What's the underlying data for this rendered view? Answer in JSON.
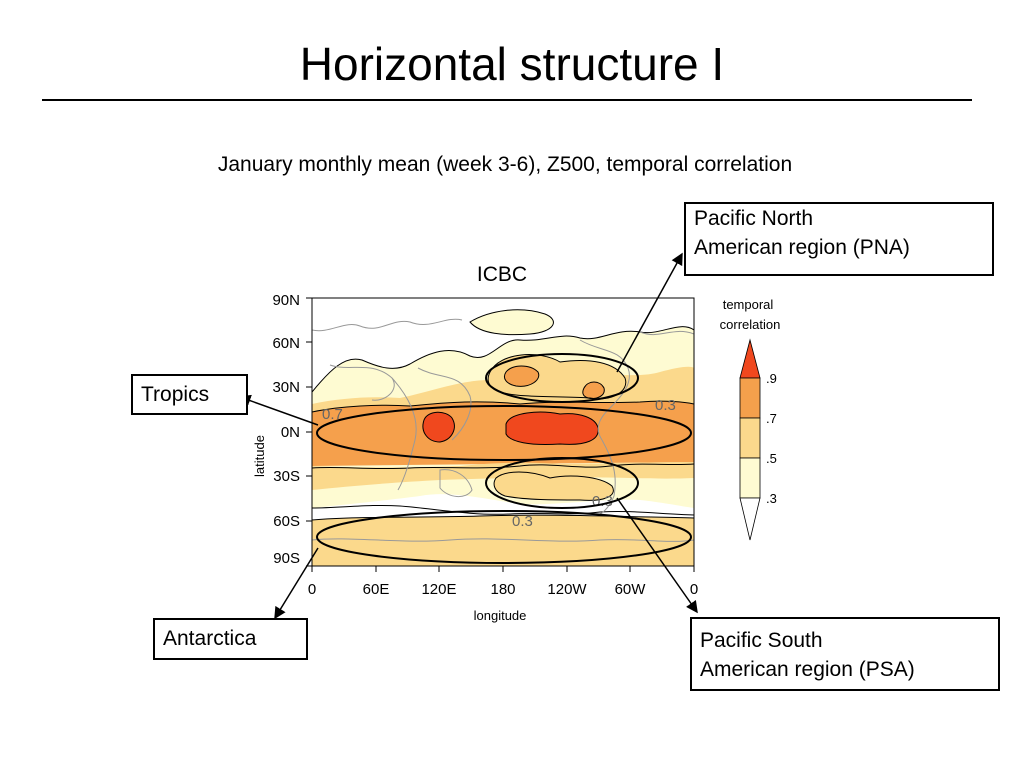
{
  "slide": {
    "title": "Horizontal structure I",
    "subtitle": "January monthly mean (week 3-6), Z500, temporal correlation"
  },
  "plot": {
    "title": "ICBC",
    "xlabel": "longitude",
    "ylabel": "latitude",
    "x_ticks": [
      "0",
      "60E",
      "120E",
      "180",
      "120W",
      "60W",
      "0"
    ],
    "y_ticks": [
      "90N",
      "60N",
      "30N",
      "0N",
      "30S",
      "60S",
      "90S"
    ],
    "contour_labels": [
      "0.7",
      "0.3",
      "0.3",
      "0.3"
    ],
    "colorbar": {
      "label_line1": "temporal",
      "label_line2": "correlation",
      "tick_labels": [
        ".9",
        ".7",
        ".5",
        ".3"
      ],
      "colors": [
        "#f0481e",
        "#f5a04c",
        "#fbd98c",
        "#fefbd2",
        "#ffffff"
      ]
    }
  },
  "callouts": {
    "pna_line1": "Pacific North",
    "pna_line2": "American region (PNA)",
    "tropics": "Tropics",
    "antarctica": "Antarctica",
    "psa_line1": "Pacific South",
    "psa_line2": "American region (PSA)"
  },
  "colors": {
    "red": "#f0481e",
    "orange": "#f5a04c",
    "tan": "#fbd98c",
    "cream": "#fefbd2",
    "coastline": "#999999"
  }
}
